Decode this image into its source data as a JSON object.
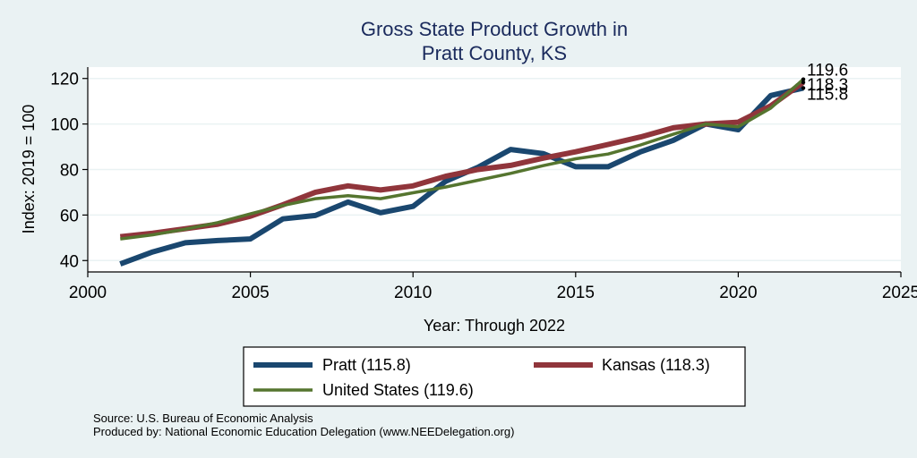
{
  "chart_data": {
    "type": "line",
    "title_line1": "Gross State Product Growth in",
    "title_line2": "Pratt County, KS",
    "xlabel": "Year: Through 2022",
    "ylabel": "Index: 2019 = 100",
    "xlim": [
      2000,
      2025
    ],
    "ylim": [
      35,
      125
    ],
    "xticks": [
      2000,
      2005,
      2010,
      2015,
      2020,
      2025
    ],
    "yticks": [
      40,
      60,
      80,
      100,
      120
    ],
    "grid": true,
    "legend_position": "bottom",
    "x": [
      2001,
      2002,
      2003,
      2004,
      2005,
      2006,
      2007,
      2008,
      2009,
      2010,
      2011,
      2012,
      2013,
      2014,
      2015,
      2016,
      2017,
      2018,
      2019,
      2020,
      2021,
      2022
    ],
    "series": [
      {
        "name": "Pratt",
        "legend_label": "Pratt  (115.8)",
        "color": "#1a476f",
        "width": 6,
        "end_label": "115.8",
        "values": [
          38.5,
          43.8,
          47.8,
          48.8,
          49.5,
          58.3,
          59.8,
          65.7,
          61.0,
          63.8,
          74.8,
          81.0,
          88.8,
          87.0,
          81.2,
          81.2,
          87.8,
          92.8,
          100.0,
          97.5,
          112.5,
          115.8
        ]
      },
      {
        "name": "Kansas",
        "legend_label": "Kansas (118.3)",
        "color": "#90353b",
        "width": 6,
        "end_label": "118.3",
        "values": [
          50.5,
          52.0,
          54.0,
          56.0,
          59.5,
          64.5,
          70.0,
          72.8,
          71.0,
          72.8,
          77.0,
          80.0,
          81.8,
          85.0,
          87.8,
          91.0,
          94.3,
          98.3,
          100.0,
          100.8,
          108.0,
          118.3
        ]
      },
      {
        "name": "United States",
        "legend_label": "United States (119.6)",
        "color": "#55752f",
        "width": 3.5,
        "end_label": "119.6",
        "values": [
          49.5,
          51.3,
          53.8,
          56.7,
          60.5,
          64.2,
          67.2,
          68.5,
          67.2,
          69.8,
          72.3,
          75.3,
          78.3,
          81.7,
          84.7,
          86.8,
          90.8,
          95.5,
          100.0,
          98.8,
          107.0,
          119.6
        ]
      }
    ],
    "source_note": "Source: U.S. Bureau of Economic Analysis",
    "produced_note": "Produced by: National Economic Education Delegation (www.NEEDelegation.org)"
  }
}
